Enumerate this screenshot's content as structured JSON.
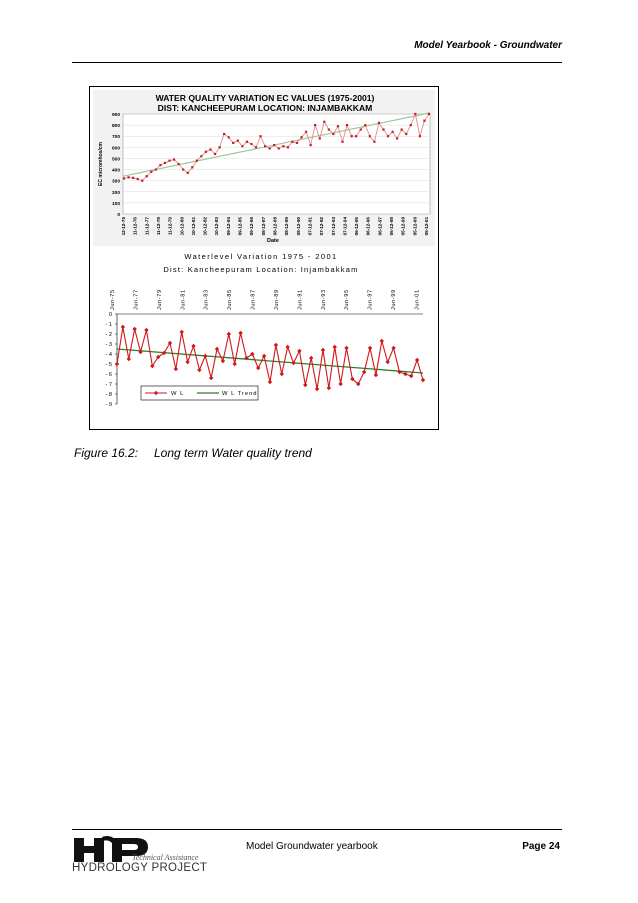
{
  "header": {
    "title": "Model Yearbook - Groundwater"
  },
  "caption": {
    "label": "Figure 16.2:",
    "text": "Long term Water quality trend"
  },
  "footer": {
    "center": "Model Groundwater yearbook",
    "page": "Page 24",
    "logo": {
      "mark": "HP",
      "tagline": "Technical Assistance",
      "name": "HYDROLOGY PROJECT"
    }
  },
  "colors": {
    "ec_line": "#e58a8a",
    "ec_marker": "#c02020",
    "ec_trend": "#9fc79f",
    "wl_line": "#d01818",
    "wl_trend": "#2e7d2e"
  },
  "chart_data": [
    {
      "type": "line",
      "title": "WATER QUALITY VARIATION EC VALUES (1975-2001)",
      "subtitle": "DIST: KANCHEEPURAM     LOCATION: INJAMBAKKAM",
      "xlabel": "Date",
      "ylabel": "EC micromhos/cm",
      "ylim": [
        0,
        900
      ],
      "yticks": [
        0,
        100,
        200,
        300,
        400,
        500,
        600,
        700,
        800,
        900
      ],
      "grid": true,
      "xticklabels": [
        "12-12-75",
        "11-12-76",
        "11-12-77",
        "11-12-78",
        "11-12-79",
        "10-12-80",
        "10-12-81",
        "10-12-82",
        "10-12-83",
        "09-12-84",
        "09-12-85",
        "09-12-86",
        "08-12-87",
        "08-12-88",
        "08-12-89",
        "08-12-90",
        "07-12-91",
        "07-12-92",
        "07-12-93",
        "07-12-94",
        "06-12-95",
        "06-12-96",
        "06-12-97",
        "06-12-98",
        "05-12-99",
        "05-12-00",
        "05-12-01"
      ],
      "series": [
        {
          "values": [
            320,
            330,
            325,
            315,
            300,
            340,
            380,
            400,
            440,
            460,
            480,
            490,
            450,
            400,
            370,
            420,
            480,
            520,
            560,
            580,
            540,
            600,
            720,
            690,
            640,
            660,
            610,
            650,
            630,
            600,
            700,
            610,
            590,
            620,
            590,
            610,
            600,
            650,
            640,
            690,
            740,
            620,
            800,
            680,
            830,
            760,
            720,
            790,
            650,
            800,
            700,
            700,
            760,
            800,
            700,
            650,
            820,
            760,
            700,
            740,
            680,
            760,
            720,
            800,
            900,
            700,
            840,
            900
          ]
        },
        {
          "values": [
            340,
            910
          ]
        }
      ]
    },
    {
      "type": "line",
      "title": "Waterlevel Variation 1975 - 2001",
      "subtitle": "Dist: Kancheepuram     Location: Injambakkam",
      "ylim": [
        -9,
        0
      ],
      "yticks": [
        0,
        -1,
        -2,
        -3,
        -4,
        -5,
        -6,
        -7,
        -8,
        -9
      ],
      "xticklabels": [
        "Jun-75",
        "Jun-77",
        "Jun-79",
        "Jun-81",
        "Jun-83",
        "Jun-85",
        "Jun-87",
        "Jun-89",
        "Jun-91",
        "Jun-93",
        "Jun-95",
        "Jun-97",
        "Jun-99",
        "Jun-01"
      ],
      "series": [
        {
          "name": "W L",
          "values": [
            -5.0,
            -1.3,
            -4.5,
            -1.5,
            -3.8,
            -1.6,
            -5.2,
            -4.3,
            -3.9,
            -2.9,
            -5.5,
            -1.8,
            -4.8,
            -3.2,
            -5.6,
            -4.2,
            -6.4,
            -3.5,
            -4.7,
            -2.0,
            -5.0,
            -1.9,
            -4.4,
            -4.0,
            -5.4,
            -4.2,
            -6.8,
            -3.1,
            -6.0,
            -3.3,
            -4.9,
            -3.7,
            -7.1,
            -4.4,
            -7.5,
            -3.6,
            -7.4,
            -3.3,
            -7.0,
            -3.4,
            -6.5,
            -7.0,
            -5.8,
            -3.4,
            -6.1,
            -2.7,
            -4.8,
            -3.4,
            -5.8,
            -6.0,
            -6.2,
            -4.6,
            -6.6
          ]
        },
        {
          "name": "W L Trend",
          "values": [
            -3.5,
            -5.9
          ]
        }
      ]
    }
  ]
}
